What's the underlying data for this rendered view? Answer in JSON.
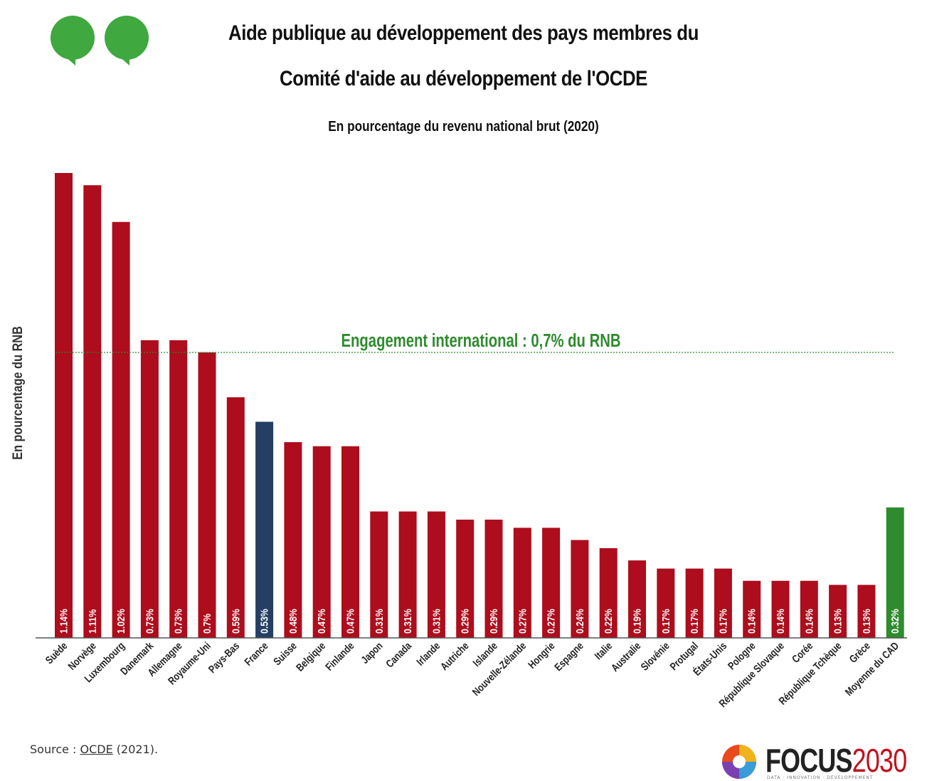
{
  "header": {
    "title_line1": "Aide publique au développement des pays membres du",
    "title_line2": "Comité d'aide au développement de l'OCDE",
    "subtitle": "En pourcentage du revenu national brut (2020)"
  },
  "footer": {
    "source_prefix": "Source : ",
    "source_link": "OCDE",
    "source_suffix": " (2021).",
    "brand_part1": "FOCUS",
    "brand_part2": "2030",
    "brand_tagline": "DATA · INNOVATION · DÉVELOPPEMENT"
  },
  "colors": {
    "default_bar": "#ad0d1c",
    "france_bar": "#243f63",
    "average_bar": "#2e8b2e",
    "reference_line": "#2e8b2e",
    "quote_logo": "#3fa83f"
  },
  "icons": {
    "logo": "quote-marks-icon",
    "brand_logo": "focus2030-aperture-icon"
  },
  "chart_data": {
    "type": "bar",
    "ylabel": "En pourcentage du RNB",
    "xlabel": "",
    "ylim": [
      0,
      1.14
    ],
    "grid": false,
    "categories": [
      "Suède",
      "Norvège",
      "Luxembourg",
      "Danemark",
      "Allemagne",
      "Royaume-Uni",
      "Pays-Bas",
      "France",
      "Suisse",
      "Belgique",
      "Finlande",
      "Japon",
      "Canada",
      "Irlande",
      "Autriche",
      "Islande",
      "Nouvelle-Zélande",
      "Hongrie",
      "Espagne",
      "Italie",
      "Australie",
      "Slovénie",
      "Protugal",
      "États-Unis",
      "Pologne",
      "République Slovaque",
      "Corée",
      "République Tchèque",
      "Grèce",
      "Moyenne du CAD"
    ],
    "values": [
      1.14,
      1.11,
      1.02,
      0.73,
      0.73,
      0.7,
      0.59,
      0.53,
      0.48,
      0.47,
      0.47,
      0.31,
      0.31,
      0.31,
      0.29,
      0.29,
      0.27,
      0.27,
      0.24,
      0.22,
      0.19,
      0.17,
      0.17,
      0.17,
      0.14,
      0.14,
      0.14,
      0.13,
      0.13,
      0.32
    ],
    "value_labels": [
      "1.14%",
      "1.11%",
      "1.02%",
      "0.73%",
      "0.73%",
      "0.7%",
      "0.59%",
      "0.53%",
      "0.48%",
      "0.47%",
      "0.47%",
      "0.31%",
      "0.31%",
      "0.31%",
      "0.29%",
      "0.29%",
      "0.27%",
      "0.27%",
      "0.24%",
      "0.22%",
      "0.19%",
      "0.17%",
      "0.17%",
      "0.17%",
      "0.14%",
      "0.14%",
      "0.14%",
      "0.13%",
      "0.13%",
      "0.32%"
    ],
    "highlight": {
      "France": "france_bar",
      "Moyenne du CAD": "average_bar"
    },
    "reference_line": {
      "value": 0.7,
      "label": "Engagement international : 0,7% du RNB"
    }
  }
}
